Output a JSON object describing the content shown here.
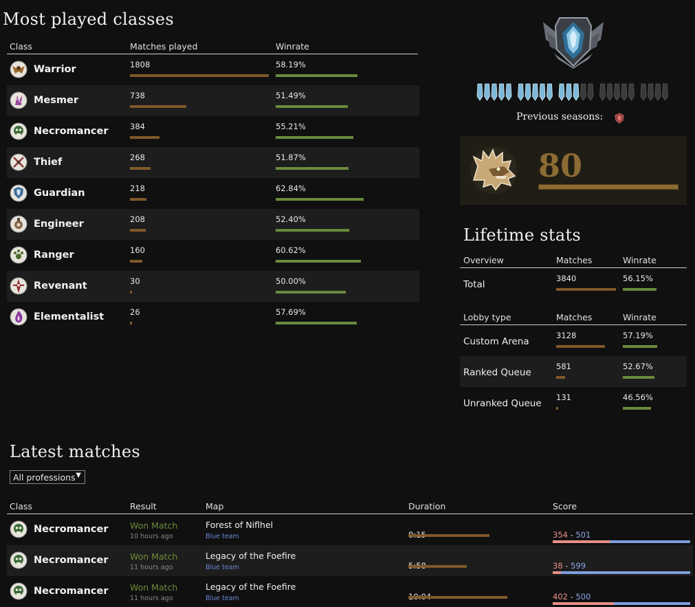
{
  "most_played": {
    "title": "Most played classes",
    "headers": {
      "class": "Class",
      "matches": "Matches played",
      "winrate": "Winrate"
    },
    "max_matches": 1808,
    "rows": [
      {
        "name": "Warrior",
        "icon": "warrior-icon",
        "matches": "1808",
        "matches_n": 1808,
        "winrate": "58.19%",
        "winrate_n": 58.19
      },
      {
        "name": "Mesmer",
        "icon": "mesmer-icon",
        "matches": "738",
        "matches_n": 738,
        "winrate": "51.49%",
        "winrate_n": 51.49
      },
      {
        "name": "Necromancer",
        "icon": "necromancer-icon",
        "matches": "384",
        "matches_n": 384,
        "winrate": "55.21%",
        "winrate_n": 55.21
      },
      {
        "name": "Thief",
        "icon": "thief-icon",
        "matches": "268",
        "matches_n": 268,
        "winrate": "51.87%",
        "winrate_n": 51.87
      },
      {
        "name": "Guardian",
        "icon": "guardian-icon",
        "matches": "218",
        "matches_n": 218,
        "winrate": "62.84%",
        "winrate_n": 62.84
      },
      {
        "name": "Engineer",
        "icon": "engineer-icon",
        "matches": "208",
        "matches_n": 208,
        "winrate": "52.40%",
        "winrate_n": 52.4
      },
      {
        "name": "Ranger",
        "icon": "ranger-icon",
        "matches": "160",
        "matches_n": 160,
        "winrate": "60.62%",
        "winrate_n": 60.62
      },
      {
        "name": "Revenant",
        "icon": "revenant-icon",
        "matches": "30",
        "matches_n": 30,
        "winrate": "50.00%",
        "winrate_n": 50.0
      },
      {
        "name": "Elementalist",
        "icon": "elementalist-icon",
        "matches": "26",
        "matches_n": 26,
        "winrate": "57.69%",
        "winrate_n": 57.69
      }
    ]
  },
  "rank": {
    "emblem_icon": "rank-emblem-icon",
    "pips_filled": 13,
    "pips_total": 25,
    "previous_seasons_label": "Previous seasons:",
    "previous_season_icon": "season-badge-icon",
    "level": "80",
    "level_icon": "dragon-head-icon",
    "level_progress": 1.0
  },
  "lifetime": {
    "title": "Lifetime stats",
    "overview_headers": {
      "label": "Overview",
      "matches": "Matches",
      "winrate": "Winrate"
    },
    "total": {
      "label": "Total",
      "matches": "3840",
      "matches_n": 3840,
      "winrate": "56.15%",
      "winrate_n": 56.15
    },
    "lobby_headers": {
      "label": "Lobby type",
      "matches": "Matches",
      "winrate": "Winrate"
    },
    "lobby_rows": [
      {
        "label": "Custom Arena",
        "matches": "3128",
        "matches_n": 3128,
        "winrate": "57.19%",
        "winrate_n": 57.19
      },
      {
        "label": "Ranked Queue",
        "matches": "581",
        "matches_n": 581,
        "winrate": "52.67%",
        "winrate_n": 52.67
      },
      {
        "label": "Unranked Queue",
        "matches": "131",
        "matches_n": 131,
        "winrate": "46.56%",
        "winrate_n": 46.56
      }
    ]
  },
  "latest": {
    "title": "Latest matches",
    "filter": {
      "selected": "All professions"
    },
    "headers": {
      "class": "Class",
      "result": "Result",
      "map": "Map",
      "duration": "Duration",
      "score": "Score"
    },
    "rows": [
      {
        "class": "Necromancer",
        "icon": "necromancer-icon",
        "result": "Won Match",
        "time": "10 hours ago",
        "map": "Forest of Niflhel",
        "team": "Blue team",
        "duration": "8:15",
        "duration_fraction": 0.7,
        "score_red": "354",
        "score_sep": " - ",
        "score_blue": "501",
        "red_fraction": 0.414
      },
      {
        "class": "Necromancer",
        "icon": "necromancer-icon",
        "result": "Won Match",
        "time": "11 hours ago",
        "map": "Legacy of the Foefire",
        "team": "Blue team",
        "duration": "5:58",
        "duration_fraction": 0.505,
        "score_red": "38",
        "score_sep": " - ",
        "score_blue": "599",
        "red_fraction": 0.06
      },
      {
        "class": "Necromancer",
        "icon": "necromancer-icon",
        "result": "Won Match",
        "time": "11 hours ago",
        "map": "Legacy of the Foefire",
        "team": "Blue team",
        "duration": "10:04",
        "duration_fraction": 0.855,
        "score_red": "402",
        "score_sep": " - ",
        "score_blue": "500",
        "red_fraction": 0.446
      }
    ]
  },
  "colors": {
    "bar_brown": "#80592a",
    "bar_green": "#6a8a3c",
    "score_red": "#e88f86",
    "score_blue": "#7f9fe0",
    "result_win": "#6d8a3a"
  }
}
